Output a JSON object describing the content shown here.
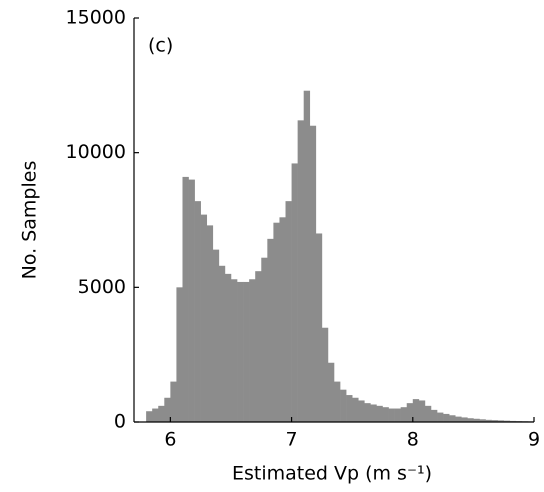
{
  "chart_data": {
    "type": "histogram",
    "annotation": "(c)",
    "xlabel": "Estimated Vp (m s⁻¹)",
    "ylabel": "No. Samples",
    "color": "#8c8c8c",
    "bins": [
      5.8,
      5.85,
      5.9,
      5.95,
      6.0,
      6.05,
      6.1,
      6.15,
      6.2,
      6.25,
      6.3,
      6.35,
      6.4,
      6.45,
      6.5,
      6.55,
      6.6,
      6.65,
      6.7,
      6.75,
      6.8,
      6.85,
      6.9,
      6.95,
      7.0,
      7.05,
      7.1,
      7.15,
      7.2,
      7.25,
      7.3,
      7.35,
      7.4,
      7.45,
      7.5,
      7.55,
      7.6,
      7.65,
      7.7,
      7.75,
      7.8,
      7.85,
      7.9,
      7.95,
      8.0,
      8.05,
      8.1,
      8.15,
      8.2,
      8.25,
      8.3,
      8.35,
      8.4,
      8.45,
      8.5,
      8.55,
      8.6,
      8.65,
      8.7,
      8.75,
      8.8,
      8.85,
      8.9,
      8.95,
      9.0
    ],
    "values": [
      400,
      500,
      600,
      900,
      1500,
      5000,
      9100,
      9000,
      8200,
      7700,
      7300,
      6400,
      5800,
      5500,
      5300,
      5200,
      5200,
      5300,
      5600,
      6100,
      6800,
      7400,
      7600,
      8200,
      9600,
      11200,
      12300,
      11000,
      7000,
      3500,
      2200,
      1500,
      1200,
      1000,
      900,
      800,
      700,
      650,
      600,
      550,
      500,
      500,
      550,
      700,
      850,
      800,
      600,
      450,
      350,
      300,
      250,
      200,
      170,
      140,
      120,
      100,
      80,
      70,
      60,
      50,
      40,
      35,
      30,
      25
    ],
    "xlim": [
      5.7,
      9
    ],
    "xticks": [
      6,
      7,
      8,
      9
    ],
    "ylim": [
      0,
      15000
    ],
    "yticks": [
      0,
      5000,
      10000,
      15000
    ]
  }
}
